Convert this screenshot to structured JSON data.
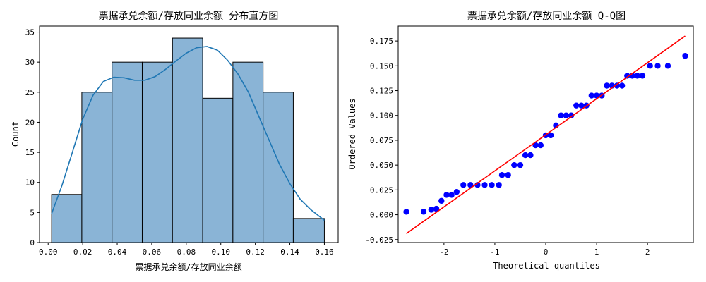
{
  "chart_data": [
    {
      "type": "histogram",
      "title": "票据承兑余额/存放同业余额  分布直方图",
      "xlabel": "票据承兑余额/存放同业余额",
      "ylabel": "Count",
      "xlim": [
        -0.005,
        0.168
      ],
      "ylim": [
        0,
        36
      ],
      "xticks": [
        "0.00",
        "0.02",
        "0.04",
        "0.06",
        "0.08",
        "0.10",
        "0.12",
        "0.14",
        "0.16"
      ],
      "yticks": [
        "0",
        "5",
        "10",
        "15",
        "20",
        "25",
        "30",
        "35"
      ],
      "bins": [
        {
          "x0": 0.002,
          "x1": 0.0195,
          "count": 8
        },
        {
          "x0": 0.0195,
          "x1": 0.037,
          "count": 25
        },
        {
          "x0": 0.037,
          "x1": 0.0545,
          "count": 30
        },
        {
          "x0": 0.0545,
          "x1": 0.072,
          "count": 30
        },
        {
          "x0": 0.072,
          "x1": 0.0895,
          "count": 34
        },
        {
          "x0": 0.0895,
          "x1": 0.107,
          "count": 24
        },
        {
          "x0": 0.107,
          "x1": 0.1245,
          "count": 30
        },
        {
          "x0": 0.1245,
          "x1": 0.142,
          "count": 25
        },
        {
          "x0": 0.142,
          "x1": 0.16,
          "count": 4
        }
      ],
      "kde": {
        "x": [
          0.002,
          0.008,
          0.014,
          0.02,
          0.026,
          0.032,
          0.038,
          0.044,
          0.05,
          0.056,
          0.062,
          0.068,
          0.074,
          0.08,
          0.086,
          0.092,
          0.098,
          0.104,
          0.11,
          0.116,
          0.122,
          0.128,
          0.134,
          0.14,
          0.146,
          0.152,
          0.16
        ],
        "y": [
          4.8,
          9.5,
          15.0,
          20.5,
          24.5,
          26.8,
          27.5,
          27.4,
          27.0,
          27.0,
          27.6,
          28.8,
          30.2,
          31.5,
          32.4,
          32.6,
          32.0,
          30.3,
          28.0,
          25.0,
          21.0,
          17.0,
          13.0,
          9.8,
          7.2,
          5.5,
          3.7
        ]
      },
      "colors": {
        "bar": "#8ab4d6",
        "edge": "#000000",
        "kde": "#1f77b4"
      },
      "grid": false
    },
    {
      "type": "scatter",
      "title": "票据承兑余额/存放同业余额   Q-Q图",
      "xlabel": "Theoretical quantiles",
      "ylabel": "Ordered Values",
      "xlim": [
        -2.9,
        2.9
      ],
      "ylim": [
        -0.028,
        0.19
      ],
      "xticks": [
        "-2",
        "-1",
        "0",
        "1",
        "2"
      ],
      "yticks": [
        "-0.025",
        "0.000",
        "0.025",
        "0.050",
        "0.075",
        "0.100",
        "0.125",
        "0.150",
        "0.175"
      ],
      "points": {
        "x": [
          -2.74,
          -2.4,
          -2.25,
          -2.15,
          -2.05,
          -1.95,
          -1.85,
          -1.75,
          -1.62,
          -1.48,
          -1.34,
          -1.2,
          -1.06,
          -0.92,
          -0.86,
          -0.74,
          -0.62,
          -0.5,
          -0.4,
          -0.3,
          -0.2,
          -0.1,
          0.0,
          0.1,
          0.2,
          0.3,
          0.4,
          0.5,
          0.6,
          0.7,
          0.8,
          0.9,
          1.0,
          1.1,
          1.2,
          1.3,
          1.4,
          1.5,
          1.6,
          1.7,
          1.8,
          1.9,
          2.05,
          2.2,
          2.4,
          2.74
        ],
        "y": [
          0.003,
          0.003,
          0.005,
          0.006,
          0.014,
          0.02,
          0.02,
          0.023,
          0.03,
          0.03,
          0.03,
          0.03,
          0.03,
          0.03,
          0.04,
          0.04,
          0.05,
          0.05,
          0.06,
          0.06,
          0.07,
          0.07,
          0.08,
          0.08,
          0.09,
          0.1,
          0.1,
          0.1,
          0.11,
          0.11,
          0.11,
          0.12,
          0.12,
          0.12,
          0.13,
          0.13,
          0.13,
          0.13,
          0.14,
          0.14,
          0.14,
          0.14,
          0.15,
          0.15,
          0.15,
          0.16
        ]
      },
      "fit_line": {
        "x": [
          -2.74,
          2.74
        ],
        "y": [
          -0.019,
          0.18
        ]
      },
      "colors": {
        "points": "#0000ff",
        "line": "#ff0000"
      },
      "grid": false
    }
  ]
}
